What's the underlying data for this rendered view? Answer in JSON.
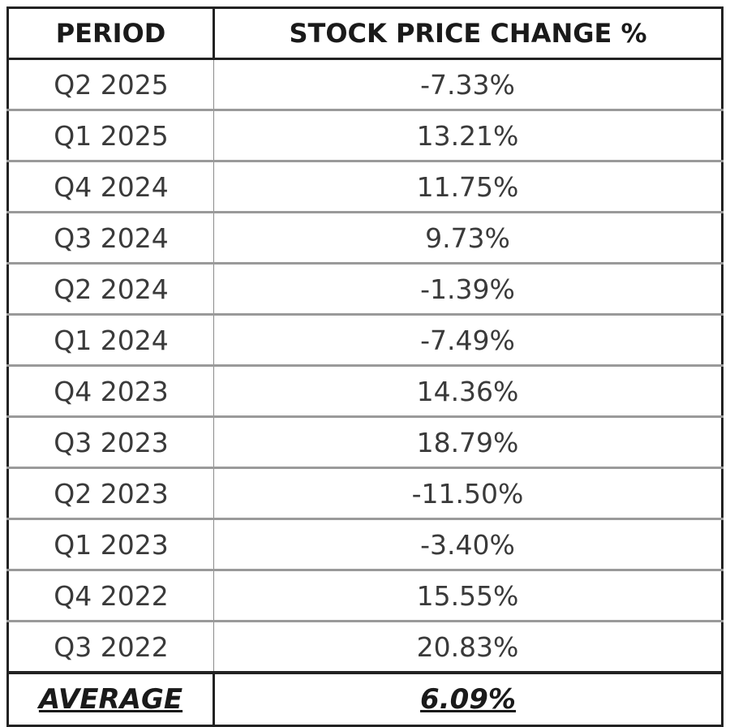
{
  "table": {
    "header": [
      "PERIOD",
      "STOCK PRICE CHANGE %"
    ],
    "rows": [
      [
        "Q2 2025",
        "-7.33%"
      ],
      [
        "Q1 2025",
        "13.21%"
      ],
      [
        "Q4 2024",
        "11.75%"
      ],
      [
        "Q3 2024",
        "9.73%"
      ],
      [
        "Q2 2024",
        "-1.39%"
      ],
      [
        "Q1 2024",
        "-7.49%"
      ],
      [
        "Q4 2023",
        "14.36%"
      ],
      [
        "Q3 2023",
        "18.79%"
      ],
      [
        "Q2 2023",
        "-11.50%"
      ],
      [
        "Q1 2023",
        "-3.40%"
      ],
      [
        "Q4 2022",
        "15.55%"
      ],
      [
        "Q3 2022",
        "20.83%"
      ]
    ],
    "footer": [
      "AVERAGE",
      "6.09%"
    ]
  }
}
